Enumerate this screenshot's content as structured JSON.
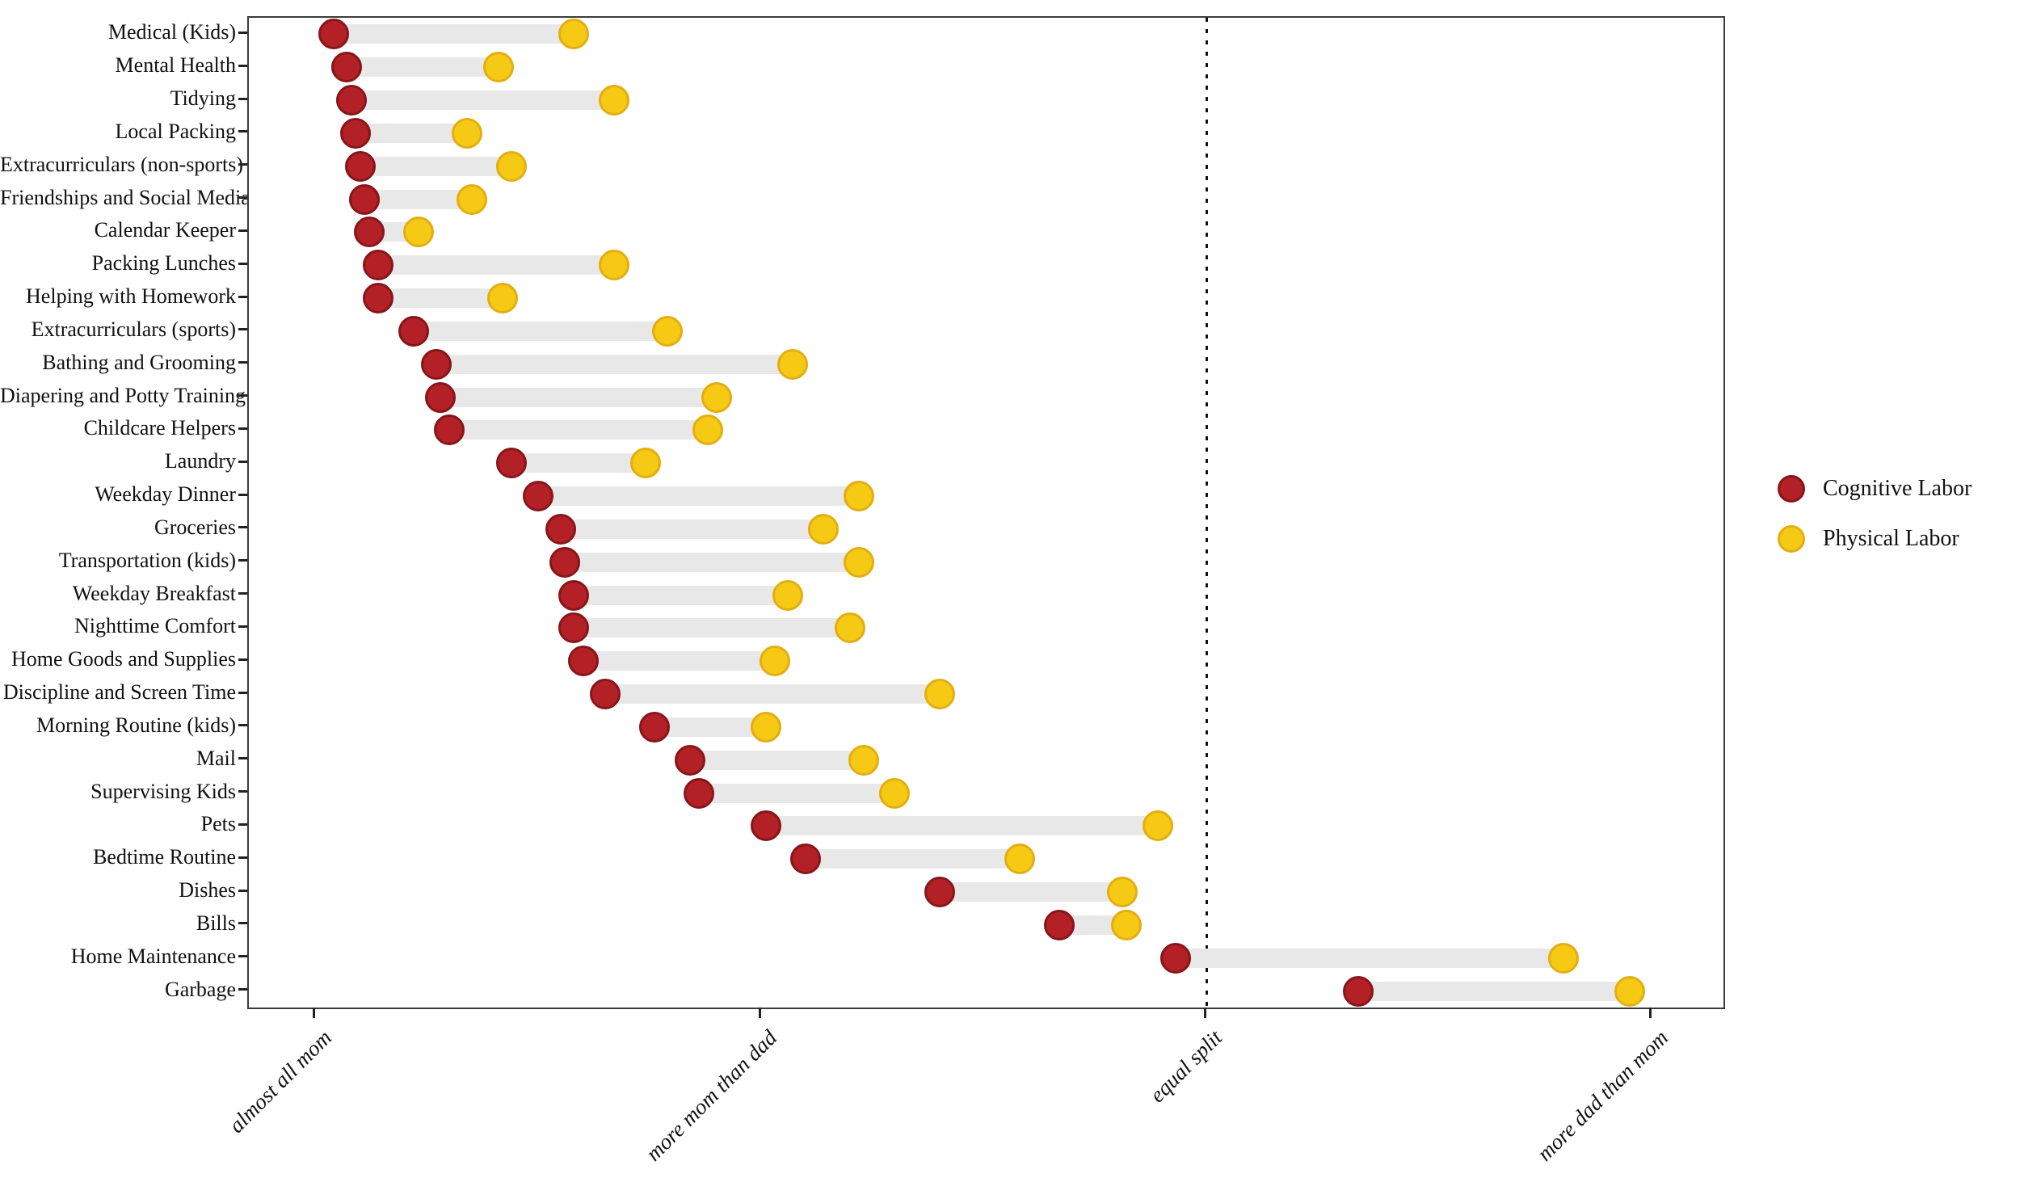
{
  "chart_data": {
    "type": "dumbbell",
    "orientation": "horizontal",
    "title": "",
    "categories": [
      "Medical (Kids)",
      "Mental Health",
      "Tidying",
      "Local Packing",
      "Extracurriculars (non-sports)",
      "Friendships and Social Media",
      "Calendar Keeper",
      "Packing Lunches",
      "Helping with Homework",
      "Extracurriculars (sports)",
      "Bathing and Grooming",
      "Diapering and Potty Training",
      "Childcare Helpers",
      "Laundry",
      "Weekday Dinner",
      "Groceries",
      "Transportation (kids)",
      "Weekday Breakfast",
      "Nighttime Comfort",
      "Home Goods and Supplies",
      "Discipline and Screen Time",
      "Morning Routine (kids)",
      "Mail",
      "Supervising Kids",
      "Pets",
      "Bedtime Routine",
      "Dishes",
      "Bills",
      "Home Maintenance",
      "Garbage"
    ],
    "series": [
      {
        "name": "Cognitive Labor",
        "color": "#b32025",
        "border_color": "#87161a",
        "values": [
          1.04,
          1.07,
          1.08,
          1.09,
          1.1,
          1.11,
          1.12,
          1.14,
          1.14,
          1.22,
          1.27,
          1.28,
          1.3,
          1.44,
          1.5,
          1.55,
          1.56,
          1.58,
          1.58,
          1.6,
          1.65,
          1.76,
          1.84,
          1.86,
          2.01,
          2.1,
          2.4,
          2.67,
          2.93,
          3.34
        ]
      },
      {
        "name": "Physical Labor",
        "color": "#f6c914",
        "border_color": "#e2ae12",
        "values": [
          1.58,
          1.41,
          1.67,
          1.34,
          1.44,
          1.35,
          1.23,
          1.67,
          1.42,
          1.79,
          2.07,
          1.9,
          1.88,
          1.74,
          2.22,
          2.14,
          2.22,
          2.06,
          2.2,
          2.03,
          2.4,
          2.01,
          2.23,
          2.3,
          2.89,
          2.58,
          2.81,
          2.82,
          3.8,
          3.95
        ]
      }
    ],
    "x_ticks": [
      {
        "value": 1,
        "label": "almost all mom"
      },
      {
        "value": 2,
        "label": "more mom than dad"
      },
      {
        "value": 3,
        "label": "equal split"
      },
      {
        "value": 4,
        "label": "more dad than mom"
      }
    ],
    "xlim": [
      0.85,
      4.16
    ],
    "reference_line": {
      "value": 3,
      "style": "dotted",
      "color": "#111111"
    },
    "connector_color": "#e8e8e8",
    "grid": "off",
    "legend_position": "right"
  },
  "legend": {
    "entries": [
      {
        "label": "Cognitive Labor",
        "color": "#b32025"
      },
      {
        "label": "Physical Labor",
        "color": "#f6c914"
      }
    ]
  }
}
